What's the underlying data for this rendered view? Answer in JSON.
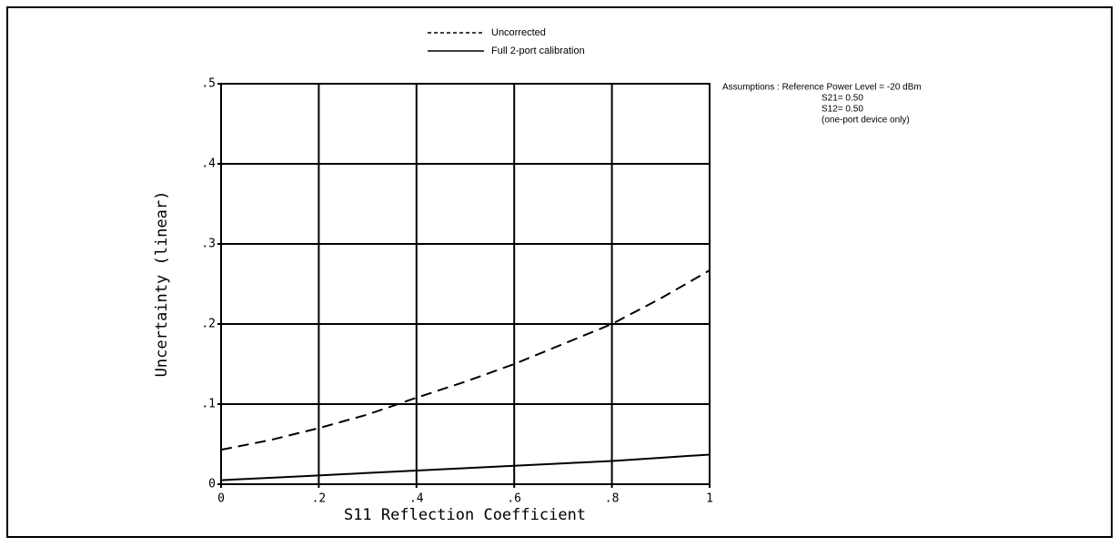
{
  "chart_data": {
    "type": "line",
    "x_label": "S11 Reflection Coefficient",
    "y_label": "Uncertainty (linear)",
    "x": [
      0,
      0.1,
      0.2,
      0.3,
      0.4,
      0.5,
      0.6,
      0.7,
      0.8,
      0.9,
      1
    ],
    "series": [
      {
        "name": "Uncorrected",
        "color": "#000000",
        "style": "dashed",
        "values": [
          0.043,
          0.055,
          0.07,
          0.087,
          0.108,
          0.128,
          0.15,
          0.175,
          0.2,
          0.232,
          0.267
        ]
      },
      {
        "name": "Full 2-port calibration",
        "color": "#000000",
        "style": "solid",
        "values": [
          0.005,
          0.008,
          0.011,
          0.014,
          0.017,
          0.02,
          0.023,
          0.026,
          0.029,
          0.033,
          0.037
        ]
      }
    ],
    "xlim": [
      0,
      1
    ],
    "xticks": [
      0,
      {
        "value": 0.2,
        "label": ".2"
      },
      {
        "value": 0.4,
        "label": ".4"
      },
      {
        "value": 0.6,
        "label": ".6"
      },
      {
        "value": 0.8,
        "label": ".8"
      },
      1
    ],
    "ylim": [
      0,
      0.5
    ],
    "yticks": [
      0,
      {
        "value": 0.1,
        "label": ".1"
      },
      {
        "value": 0.2,
        "label": ".2"
      },
      {
        "value": 0.3,
        "label": ".3"
      },
      {
        "value": 0.4,
        "label": ".4"
      },
      {
        "value": 0.5,
        "label": ".5"
      }
    ],
    "grid": true,
    "annotations": [
      "Assumptions : Reference Power Level = -20 dBm",
      "S21= 0.50",
      "S12= 0.50",
      "(one-port device only)"
    ]
  }
}
